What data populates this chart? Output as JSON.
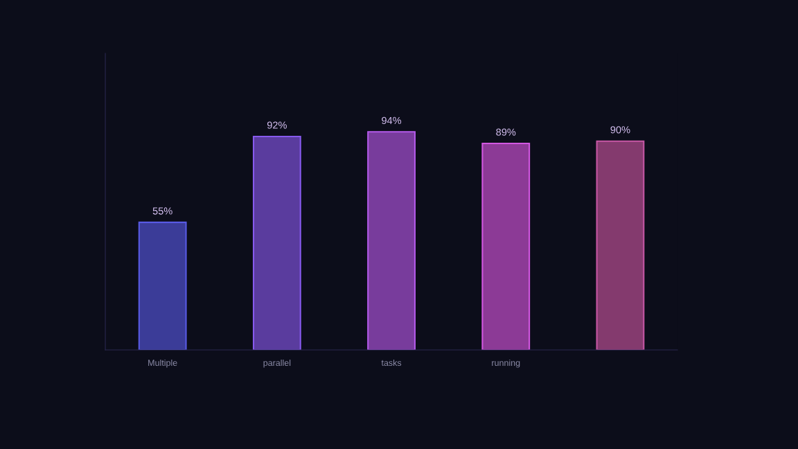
{
  "chart_data": {
    "type": "bar",
    "categories": [
      "Multiple",
      "parallel",
      "tasks",
      "running",
      null
    ],
    "values": [
      55,
      92,
      94,
      89,
      90
    ],
    "colors": [
      "#3b3c98",
      "#5a3c9e",
      "#783c9c",
      "#8c3a96",
      "#843a6e"
    ],
    "value_labels": [
      "55%",
      "92%",
      "94%",
      "89%",
      "90%"
    ],
    "tick_labels": "x",
    "grid": false,
    "legend": false
  }
}
